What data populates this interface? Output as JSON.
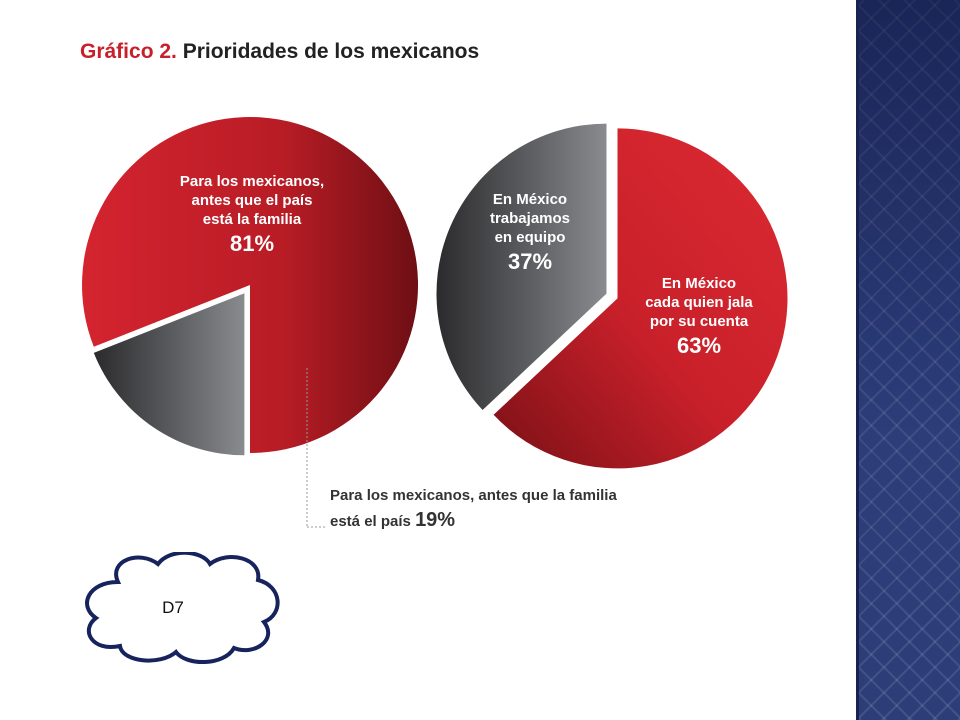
{
  "title": {
    "prefix": "Gráfico 2.",
    "main": "Prioridades de los mexicanos"
  },
  "chart_data": [
    {
      "type": "pie",
      "categories": [
        "Para los mexicanos, antes que el país está la familia",
        "Para los mexicanos, antes que la familia está el país"
      ],
      "values": [
        81,
        19
      ],
      "colors": [
        "#c8202a",
        "#5a5b5e"
      ],
      "labels": [
        {
          "lines": [
            "Para los mexicanos,",
            "antes que el país",
            "está la familia"
          ],
          "pct": "81%"
        },
        {
          "text": "Para los mexicanos, antes que la familia",
          "text2": "está el país",
          "pct": "19%"
        }
      ]
    },
    {
      "type": "pie",
      "categories": [
        "En México cada quien jala por su cuenta",
        "En México trabajamos en equipo"
      ],
      "values": [
        63,
        37
      ],
      "colors": [
        "#c8202a",
        "#5a5b5e"
      ],
      "labels": [
        {
          "lines": [
            "En México",
            "cada quien jala",
            "por su cuenta"
          ],
          "pct": "63%"
        },
        {
          "lines": [
            "En México",
            "trabajamos",
            "en equipo"
          ],
          "pct": "37%"
        }
      ]
    }
  ],
  "cloud": {
    "label": "D7"
  },
  "colors": {
    "accent": "#c8202a",
    "gray": "#5a5b5e",
    "sidebar": "#2d3d78"
  }
}
